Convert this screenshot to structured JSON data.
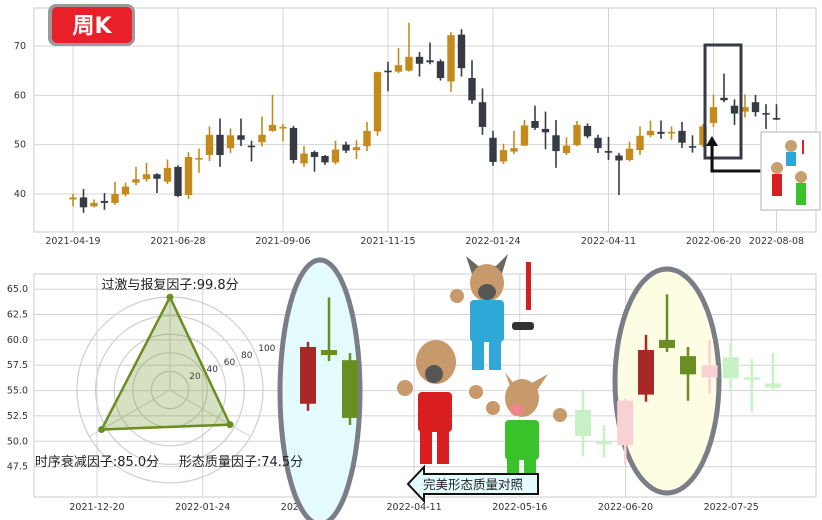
{
  "badge": {
    "label": "周K",
    "color": "#e8202a"
  },
  "colors": {
    "up": "#c48a1c",
    "down": "#363a45",
    "red": "#a82828",
    "green": "#6b8e23",
    "faded_green": "#c6f2c6",
    "faded_red": "#f8d2d2",
    "radar": "#6b8e23"
  },
  "chart_data": [
    {
      "type": "candlestick",
      "title": "",
      "ylim": [
        32.3,
        77.7
      ],
      "yticks": [
        "40",
        "50",
        "60",
        "70"
      ],
      "ytick_values": [
        40,
        50,
        60,
        70
      ],
      "xticks": [
        "2021-04-19",
        "2021-06-28",
        "2021-09-06",
        "2021-11-15",
        "2022-01-24",
        "2022-04-11",
        "2022-06-20",
        "2022-08-08"
      ],
      "first_week": "2021-04-19",
      "grid": true,
      "highlight_weeks": [
        "2022-06-27",
        "2022-07-11"
      ],
      "ohlc_note_order": [
        "open",
        "close",
        "high",
        "low"
      ],
      "candles": [
        [
          38.9,
          39.3,
          40,
          37.5
        ],
        [
          39.3,
          37.3,
          41,
          36.2
        ],
        [
          37.5,
          38.2,
          38.9,
          37.3
        ],
        [
          38.6,
          38.2,
          40.2,
          36.8
        ],
        [
          38.2,
          40,
          42.5,
          37.8
        ],
        [
          39.9,
          41.5,
          42.3,
          39.5
        ],
        [
          42.3,
          43,
          45.5,
          41.8
        ],
        [
          43,
          44,
          46.3,
          42.5
        ],
        [
          44,
          43.1,
          44.2,
          40.2
        ],
        [
          42.5,
          45.3,
          47,
          42
        ],
        [
          45.5,
          39.6,
          45.8,
          39.4
        ],
        [
          39.8,
          47.5,
          48.5,
          39
        ],
        [
          47.1,
          47.3,
          49.2,
          44.3
        ],
        [
          47.9,
          52,
          53.7,
          46.7
        ],
        [
          52,
          47.9,
          55.3,
          45.5
        ],
        [
          49.3,
          51.9,
          53.3,
          48.3
        ],
        [
          51.9,
          51,
          55.3,
          49.7
        ],
        [
          49.8,
          49.5,
          50.8,
          46.6
        ],
        [
          50.5,
          52,
          55.7,
          49.6
        ],
        [
          52.8,
          54,
          60.1,
          52.6
        ],
        [
          53.4,
          53.6,
          54.2,
          50.7
        ],
        [
          53.4,
          46.9,
          53.8,
          46.2
        ],
        [
          46.2,
          48.2,
          49.7,
          45.5
        ],
        [
          48.5,
          47.5,
          48.8,
          44.5
        ],
        [
          47.7,
          46.4,
          47.9,
          45.9
        ],
        [
          46.4,
          49,
          50.8,
          46
        ],
        [
          50,
          48.8,
          50.6,
          48.3
        ],
        [
          48.9,
          49.5,
          50.9,
          47.1
        ],
        [
          49.7,
          52.8,
          54.6,
          48.7
        ],
        [
          52.7,
          64.7,
          64.8,
          51.8
        ],
        [
          65,
          64.9,
          66.8,
          60.8
        ],
        [
          64.8,
          66.1,
          69.6,
          64.5
        ],
        [
          65,
          67.8,
          74.7,
          64.8
        ],
        [
          67.8,
          66.4,
          68.8,
          63.8
        ],
        [
          67.1,
          66.7,
          70.7,
          66.3
        ],
        [
          66.9,
          63.5,
          67.3,
          63
        ],
        [
          62.8,
          72.2,
          72.8,
          60.7
        ],
        [
          72.3,
          65.5,
          73.4,
          63.8
        ],
        [
          63.5,
          59,
          67.1,
          58.3
        ],
        [
          58.6,
          53.6,
          61.4,
          52
        ],
        [
          51.4,
          46.5,
          52.8,
          45.7
        ],
        [
          46.6,
          48.9,
          50.2,
          46.1
        ],
        [
          48.6,
          49.3,
          52.8,
          48.1
        ],
        [
          49.8,
          53.9,
          55,
          49.7
        ],
        [
          54.8,
          53.4,
          57.9,
          53
        ],
        [
          53.2,
          52.5,
          56.7,
          49.1
        ],
        [
          51.9,
          48.7,
          55,
          45.3
        ],
        [
          48.3,
          49.8,
          51.5,
          47.9
        ],
        [
          49.9,
          54,
          54.8,
          49.7
        ],
        [
          53.8,
          51.7,
          54.3,
          51.3
        ],
        [
          51.4,
          49.3,
          52,
          48.3
        ],
        [
          48.7,
          48.6,
          51.6,
          46.9
        ],
        [
          47.8,
          46.8,
          48.3,
          39.8
        ],
        [
          46.9,
          49.2,
          50.6,
          46.6
        ],
        [
          48.9,
          51.8,
          53.7,
          47.9
        ],
        [
          51.9,
          52.8,
          54.9,
          51.5
        ],
        [
          52.6,
          52.2,
          54.9,
          51.2
        ],
        [
          52.3,
          52.6,
          53.7,
          51
        ],
        [
          52.8,
          50.4,
          54.6,
          49.3
        ],
        [
          49.7,
          49.6,
          51.9,
          48.4
        ],
        [
          49.9,
          53.7,
          54.2,
          49.5
        ],
        [
          54.4,
          57.6,
          60.1,
          53.6
        ],
        [
          59.5,
          59,
          64.4,
          58.6
        ],
        [
          57.9,
          56.3,
          59.2,
          54
        ],
        [
          56.7,
          57.6,
          60.2,
          55.5
        ],
        [
          58.6,
          56.6,
          60.1,
          55.7
        ],
        [
          56.4,
          56.3,
          58.2,
          53.2
        ],
        [
          55.4,
          55.2,
          58.2,
          55
        ]
      ]
    },
    {
      "type": "candlestick-comparison",
      "title": "",
      "ylim": [
        44.5,
        66.5
      ],
      "yticks": [
        "47.5",
        "50.0",
        "52.5",
        "55.0",
        "57.5",
        "60.0",
        "62.5",
        "65.0"
      ],
      "ytick_values": [
        47.5,
        50,
        52.5,
        55,
        57.5,
        60,
        62.5,
        65
      ],
      "xticks": [
        "2021-12-20",
        "2022-01-24",
        "2022-03-07",
        "2022-04-11",
        "2022-05-16",
        "2022-06-20",
        "2022-07-25"
      ],
      "grid": true,
      "template_candles": [
        {
          "o": 59.3,
          "c": 53.7,
          "h": 59.8,
          "l": 53.0,
          "color": "red"
        },
        {
          "o": 58.5,
          "c": 59.0,
          "h": 64.2,
          "l": 57.9,
          "color": "green"
        },
        {
          "o": 58.0,
          "c": 52.3,
          "h": 58.7,
          "l": 51.6,
          "color": "green"
        }
      ],
      "matched_candles": [
        {
          "o": 59.0,
          "c": 54.6,
          "h": 60.5,
          "l": 53.9,
          "color": "red"
        },
        {
          "o": 59.2,
          "c": 60.0,
          "h": 64.5,
          "l": 58.8,
          "color": "green"
        },
        {
          "o": 58.4,
          "c": 56.6,
          "h": 59.3,
          "l": 54.0,
          "color": "green"
        }
      ],
      "faded_candles": [
        {
          "pos": 0,
          "o": 53.1,
          "c": 50.5,
          "h": 55.0,
          "l": 48.5,
          "color": "faded_green"
        },
        {
          "pos": 1,
          "o": 50.0,
          "c": 49.7,
          "h": 51.6,
          "l": 48.4,
          "color": "faded_green"
        },
        {
          "pos": 2,
          "o": 49.6,
          "c": 54.0,
          "h": 54.2,
          "l": 47.7,
          "color": "faded_red"
        },
        {
          "pos": 6,
          "o": 56.3,
          "c": 57.5,
          "h": 60.0,
          "l": 54.7,
          "color": "faded_red"
        },
        {
          "pos": 7,
          "o": 58.3,
          "c": 56.2,
          "h": 59.7,
          "l": 55.1,
          "color": "faded_green"
        },
        {
          "pos": 8,
          "o": 56.3,
          "c": 56.1,
          "h": 58.1,
          "l": 52.9,
          "color": "faded_green"
        },
        {
          "pos": 9,
          "o": 55.7,
          "c": 55.3,
          "h": 58.7,
          "l": 55.1,
          "color": "faded_green"
        }
      ],
      "arrow_label": "完美形态质量对照"
    },
    {
      "type": "radar",
      "axes": [
        {
          "label": "过激与报复因子:99.8分",
          "value": 99.8
        },
        {
          "label": "时序衰减因子:85.0分",
          "value": 85.0
        },
        {
          "label": "形态质量因子:74.5分",
          "value": 74.5
        }
      ],
      "rings": [
        "20",
        "40",
        "60",
        "80",
        "100"
      ],
      "ring_values": [
        20,
        40,
        60,
        80,
        100
      ],
      "rmax": 100
    }
  ]
}
